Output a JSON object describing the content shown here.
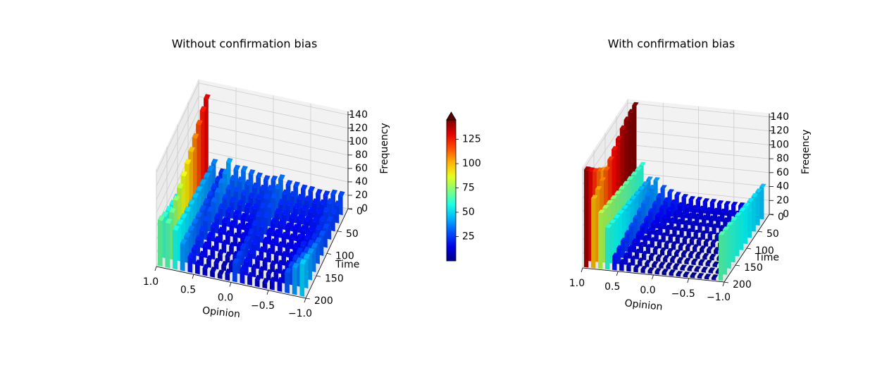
{
  "chart_data": [
    {
      "type": "bar3d",
      "title": "Without confirmation bias",
      "xlabel": "Opinion",
      "ylabel": "Time",
      "zlabel": "Frequency",
      "x_ticks": [
        "1.0",
        "0.5",
        "0.0",
        "−0.5",
        "−1.0"
      ],
      "y_ticks": [
        "0",
        "50",
        "100",
        "150",
        "200"
      ],
      "z_ticks": [
        "0",
        "20",
        "40",
        "60",
        "80",
        "100",
        "120",
        "140"
      ],
      "xlim": [
        -1.0,
        1.0
      ],
      "ylim": [
        0,
        200
      ],
      "zlim": [
        0,
        145
      ],
      "opinion_bins": [
        0.95,
        0.85,
        0.75,
        0.65,
        0.55,
        0.45,
        0.35,
        0.25,
        0.15,
        0.05,
        -0.05,
        -0.15,
        -0.25,
        -0.35,
        -0.45,
        -0.55,
        -0.65,
        -0.75,
        -0.85,
        -0.95
      ],
      "time_bins": [
        200,
        180,
        160,
        140,
        120,
        100,
        80,
        60,
        40,
        20,
        0
      ],
      "frequency": [
        [
          68,
          62,
          58,
          55,
          52,
          50,
          48,
          46,
          45,
          44,
          44
        ],
        [
          66,
          70,
          76,
          82,
          88,
          94,
          100,
          108,
          116,
          124,
          130
        ],
        [
          58,
          55,
          52,
          50,
          48,
          46,
          44,
          42,
          40,
          38,
          36
        ],
        [
          40,
          38,
          36,
          34,
          32,
          30,
          28,
          27,
          26,
          25,
          24
        ],
        [
          22,
          22,
          24,
          26,
          28,
          30,
          32,
          34,
          36,
          38,
          42
        ],
        [
          14,
          15,
          17,
          19,
          21,
          23,
          25,
          27,
          29,
          31,
          34
        ],
        [
          10,
          11,
          13,
          15,
          17,
          19,
          22,
          25,
          28,
          31,
          35
        ],
        [
          8,
          9,
          10,
          12,
          14,
          17,
          20,
          23,
          26,
          29,
          32
        ],
        [
          6,
          7,
          9,
          11,
          13,
          15,
          18,
          21,
          24,
          27,
          30
        ],
        [
          10,
          11,
          12,
          14,
          16,
          18,
          20,
          22,
          24,
          26,
          28
        ],
        [
          28,
          27,
          26,
          25,
          24,
          24,
          25,
          26,
          27,
          28,
          30
        ],
        [
          20,
          20,
          21,
          22,
          23,
          24,
          26,
          28,
          30,
          32,
          34
        ],
        [
          12,
          12,
          13,
          14,
          16,
          18,
          20,
          22,
          24,
          26,
          28
        ],
        [
          10,
          11,
          12,
          14,
          16,
          18,
          20,
          22,
          24,
          26,
          28
        ],
        [
          8,
          9,
          10,
          12,
          14,
          16,
          18,
          20,
          22,
          24,
          26
        ],
        [
          12,
          12,
          13,
          14,
          15,
          16,
          18,
          20,
          22,
          24,
          26
        ],
        [
          14,
          14,
          15,
          16,
          17,
          18,
          19,
          20,
          21,
          22,
          24
        ],
        [
          30,
          28,
          26,
          24,
          22,
          20,
          20,
          21,
          22,
          23,
          24
        ],
        [
          40,
          36,
          32,
          28,
          26,
          24,
          24,
          25,
          26,
          27,
          28
        ],
        [
          48,
          44,
          40,
          36,
          32,
          30,
          28,
          27,
          26,
          26,
          28
        ]
      ]
    },
    {
      "type": "bar3d",
      "title": "With confirmation bias",
      "xlabel": "Opinion",
      "ylabel": "Time",
      "zlabel": "Freqency",
      "x_ticks": [
        "1.0",
        "0.5",
        "0.0",
        "−0.5",
        "−1.0"
      ],
      "y_ticks": [
        "0",
        "50",
        "100",
        "150",
        "200"
      ],
      "z_ticks": [
        "0",
        "20",
        "40",
        "60",
        "80",
        "100",
        "120",
        "140"
      ],
      "xlim": [
        -1.0,
        1.0
      ],
      "ylim": [
        0,
        200
      ],
      "zlim": [
        0,
        145
      ],
      "opinion_bins": [
        0.95,
        0.85,
        0.75,
        0.65,
        0.55,
        0.45,
        0.35,
        0.25,
        0.15,
        0.05,
        -0.05,
        -0.15,
        -0.25,
        -0.35,
        -0.45,
        -0.55,
        -0.65,
        -0.75,
        -0.85,
        -0.95
      ],
      "time_bins": [
        200,
        180,
        160,
        140,
        120,
        100,
        80,
        60,
        40,
        20,
        0
      ],
      "frequency": [
        [
          140,
          130,
          120,
          112,
          104,
          98,
          94,
          92,
          90,
          90,
          92
        ],
        [
          100,
          104,
          108,
          114,
          120,
          126,
          132,
          138,
          142,
          144,
          145
        ],
        [
          80,
          78,
          76,
          74,
          72,
          70,
          68,
          66,
          64,
          62,
          60
        ],
        [
          60,
          58,
          56,
          54,
          52,
          50,
          48,
          46,
          44,
          42,
          40
        ],
        [
          20,
          22,
          24,
          26,
          28,
          30,
          32,
          34,
          36,
          38,
          40
        ],
        [
          12,
          13,
          14,
          15,
          17,
          19,
          21,
          23,
          25,
          27,
          30
        ],
        [
          8,
          9,
          10,
          11,
          12,
          14,
          16,
          18,
          20,
          22,
          25
        ],
        [
          6,
          7,
          8,
          9,
          10,
          12,
          14,
          16,
          18,
          20,
          22
        ],
        [
          5,
          5,
          6,
          7,
          8,
          9,
          11,
          13,
          15,
          17,
          20
        ],
        [
          4,
          4,
          5,
          6,
          7,
          8,
          10,
          12,
          14,
          16,
          18
        ],
        [
          4,
          4,
          5,
          6,
          7,
          8,
          9,
          11,
          13,
          15,
          18
        ],
        [
          4,
          4,
          5,
          5,
          6,
          7,
          9,
          11,
          13,
          15,
          17
        ],
        [
          4,
          4,
          4,
          5,
          6,
          7,
          8,
          10,
          12,
          14,
          17
        ],
        [
          3,
          3,
          4,
          5,
          6,
          7,
          8,
          10,
          12,
          14,
          16
        ],
        [
          3,
          3,
          4,
          5,
          5,
          6,
          8,
          10,
          12,
          14,
          16
        ],
        [
          3,
          3,
          4,
          4,
          5,
          6,
          7,
          9,
          11,
          13,
          16
        ],
        [
          3,
          3,
          4,
          4,
          5,
          6,
          7,
          9,
          11,
          13,
          16
        ],
        [
          3,
          3,
          3,
          4,
          5,
          6,
          7,
          9,
          11,
          13,
          15
        ],
        [
          3,
          3,
          3,
          4,
          5,
          6,
          7,
          9,
          11,
          13,
          15
        ],
        [
          66,
          64,
          62,
          60,
          58,
          56,
          54,
          52,
          50,
          48,
          46
        ]
      ]
    }
  ],
  "colorbar": {
    "colormap": "jet",
    "min": 0,
    "max": 145,
    "extend": "max",
    "ticks": [
      "25",
      "50",
      "75",
      "100",
      "125"
    ]
  }
}
